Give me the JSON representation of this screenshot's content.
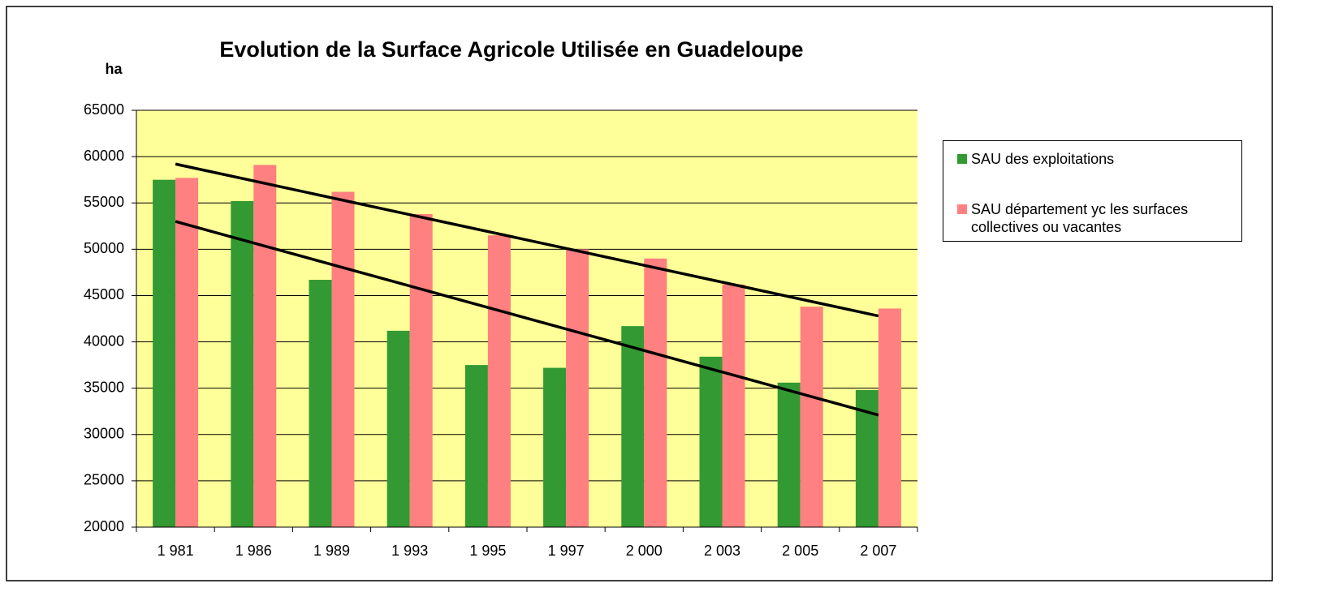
{
  "chart_data": {
    "type": "bar",
    "title": "Evolution de la Surface Agricole Utilisée en Guadeloupe",
    "y_label": "ha",
    "categories": [
      "1 981",
      "1 986",
      "1 989",
      "1 993",
      "1 995",
      "1 997",
      "2 000",
      "2 003",
      "2 005",
      "2 007"
    ],
    "series": [
      {
        "name": "SAU des exploitations",
        "color": "#339933",
        "values": [
          57500,
          55200,
          46700,
          41200,
          37500,
          37200,
          41700,
          38400,
          35600,
          34800
        ]
      },
      {
        "name": "SAU département yc les surfaces collectives ou vacantes",
        "color": "#ff8080",
        "values": [
          57700,
          59100,
          56200,
          53800,
          51500,
          50000,
          49000,
          46200,
          43800,
          43600
        ]
      }
    ],
    "trendlines": [
      {
        "color": "#000000",
        "values": [
          59200,
          42800
        ]
      },
      {
        "color": "#000000",
        "values": [
          53000,
          32100
        ]
      }
    ],
    "ylim": [
      20000,
      65000
    ],
    "yticks": [
      20000,
      25000,
      30000,
      35000,
      40000,
      45000,
      50000,
      55000,
      60000,
      65000
    ],
    "grid": true,
    "plot_background": "#ffff99",
    "legend": "right"
  }
}
